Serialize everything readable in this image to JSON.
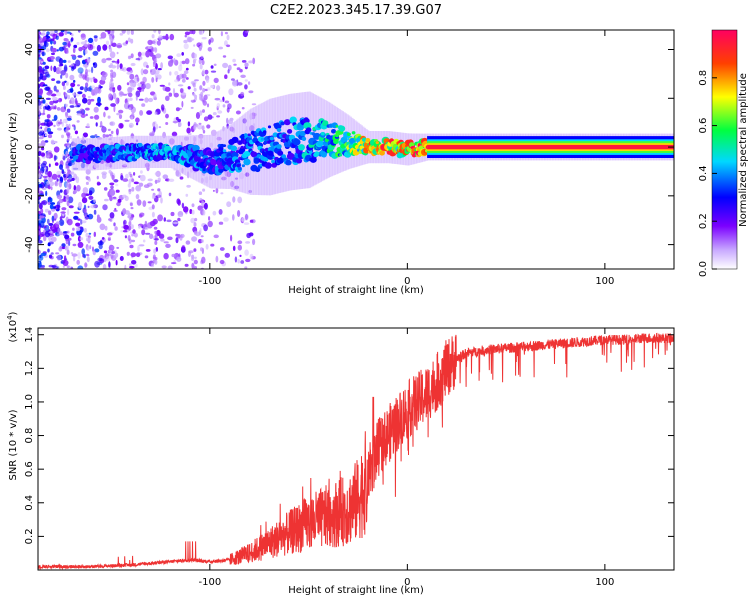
{
  "title": "C2E2.2023.345.17.39.G07",
  "chart_data": [
    {
      "type": "heatmap",
      "xlabel": "Height of straight line (km)",
      "ylabel": "Frequency (Hz)",
      "xlim": [
        -187,
        135
      ],
      "ylim": [
        -50,
        48
      ],
      "x_ticks": [
        -100,
        0,
        100
      ],
      "y_ticks": [
        -40,
        -20,
        0,
        20,
        40
      ],
      "colorbar": {
        "label": "Normalized spectral amplitude",
        "range": [
          0,
          1
        ],
        "ticks": [
          0.0,
          0.2,
          0.4,
          0.6,
          0.8
        ],
        "colors": [
          "#ffffff",
          "#c8a8ff",
          "#7b00ff",
          "#0000ff",
          "#00d8ff",
          "#00ff40",
          "#ffff00",
          "#ff4000",
          "#ff0060"
        ]
      },
      "signal_band": [
        {
          "x": -160,
          "center": -3,
          "halfwidth": 3,
          "amplitude": 0.35
        },
        {
          "x": -140,
          "center": -2,
          "halfwidth": 3,
          "amplitude": 0.4
        },
        {
          "x": -120,
          "center": -2,
          "halfwidth": 3,
          "amplitude": 0.45
        },
        {
          "x": -100,
          "center": -6,
          "halfwidth": 5,
          "amplitude": 0.35
        },
        {
          "x": -90,
          "center": -4,
          "halfwidth": 6,
          "amplitude": 0.4
        },
        {
          "x": -80,
          "center": -2,
          "halfwidth": 8,
          "amplitude": 0.4
        },
        {
          "x": -70,
          "center": 0,
          "halfwidth": 9,
          "amplitude": 0.4
        },
        {
          "x": -60,
          "center": 2,
          "halfwidth": 9,
          "amplitude": 0.4
        },
        {
          "x": -50,
          "center": 3,
          "halfwidth": 9,
          "amplitude": 0.45
        },
        {
          "x": -40,
          "center": 3,
          "halfwidth": 7,
          "amplitude": 0.5
        },
        {
          "x": -30,
          "center": 2,
          "halfwidth": 5,
          "amplitude": 0.6
        },
        {
          "x": -20,
          "center": 0,
          "halfwidth": 3,
          "amplitude": 0.8
        },
        {
          "x": -10,
          "center": 0,
          "halfwidth": 3,
          "amplitude": 0.85
        },
        {
          "x": 0,
          "center": -1,
          "halfwidth": 3,
          "amplitude": 0.85
        },
        {
          "x": 10,
          "center": 0,
          "halfwidth": 2.5,
          "amplitude": 0.95
        },
        {
          "x": 50,
          "center": 0,
          "halfwidth": 2.5,
          "amplitude": 1.0
        },
        {
          "x": 135,
          "center": 0,
          "halfwidth": 2.5,
          "amplitude": 1.0
        }
      ]
    },
    {
      "type": "line",
      "xlabel": "Height of straight line (km)",
      "ylabel": "SNR (10 * v/v)",
      "y_multiplier": "(x10",
      "y_multiplier_exp": "4",
      "y_multiplier_close": ")",
      "xlim": [
        -187,
        135
      ],
      "ylim": [
        0,
        1.44
      ],
      "x_ticks": [
        -100,
        0,
        100
      ],
      "y_ticks": [
        0.2,
        0.4,
        0.6,
        0.8,
        1.0,
        1.2,
        1.4
      ],
      "color": "#ee3333",
      "series": [
        {
          "x": [
            -187,
            -160,
            -140,
            -120,
            -110,
            -100,
            -90,
            -80,
            -70,
            -60,
            -50,
            -40,
            -30,
            -25,
            -20,
            -15,
            -10,
            -5,
            0,
            5,
            10,
            15,
            20,
            25,
            30,
            40,
            50,
            60,
            70,
            80,
            90,
            100,
            110,
            120,
            135
          ],
          "y": [
            0.02,
            0.02,
            0.03,
            0.05,
            0.06,
            0.05,
            0.06,
            0.1,
            0.16,
            0.22,
            0.28,
            0.32,
            0.36,
            0.42,
            0.55,
            0.72,
            0.8,
            0.88,
            0.95,
            1.0,
            1.05,
            1.12,
            1.2,
            1.26,
            1.29,
            1.31,
            1.32,
            1.33,
            1.34,
            1.35,
            1.36,
            1.37,
            1.37,
            1.38,
            1.38
          ]
        }
      ]
    }
  ]
}
